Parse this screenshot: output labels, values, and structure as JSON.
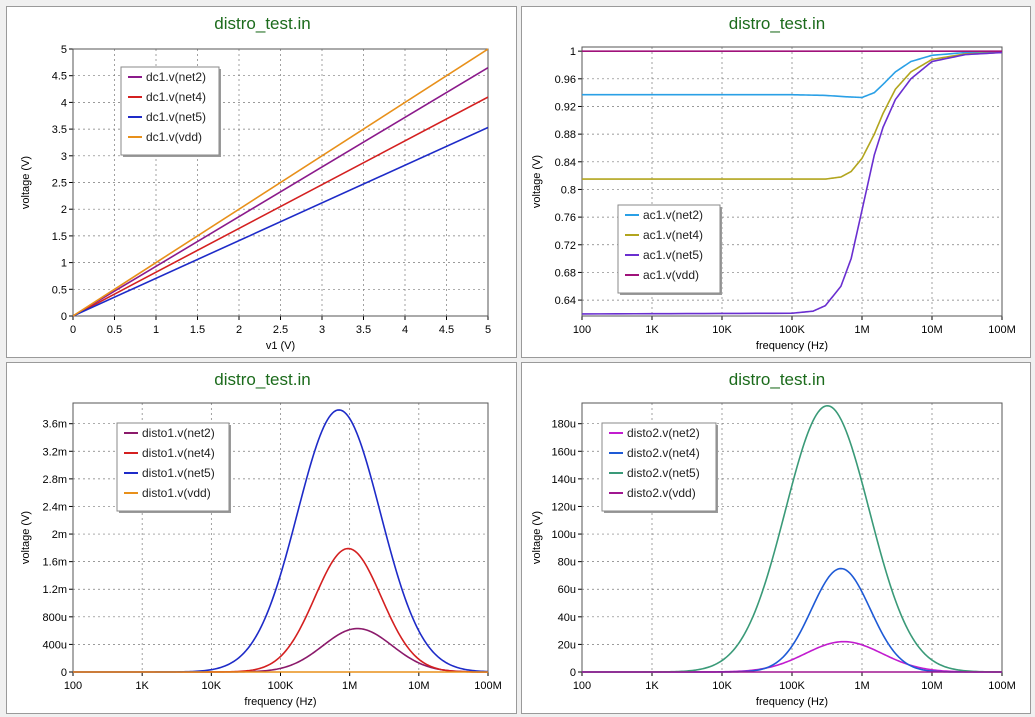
{
  "chart_data": [
    {
      "type": "line",
      "title": "distro_test.in",
      "xlabel": "v1 (V)",
      "ylabel": "voltage (V)",
      "xscale": "linear",
      "xlim": [
        0,
        5
      ],
      "ylim": [
        0,
        5
      ],
      "xticks": [
        0,
        0.5,
        1,
        1.5,
        2,
        2.5,
        3,
        3.5,
        4,
        4.5,
        5
      ],
      "xtick_labels": [
        "0",
        "0.5",
        "1",
        "1.5",
        "2",
        "2.5",
        "3",
        "3.5",
        "4",
        "4.5",
        "5"
      ],
      "yticks": [
        0,
        0.5,
        1,
        1.5,
        2,
        2.5,
        3,
        3.5,
        4,
        4.5,
        5
      ],
      "ytick_labels": [
        "0",
        "0.5",
        "1",
        "1.5",
        "2",
        "2.5",
        "3",
        "3.5",
        "4",
        "4.5",
        "5"
      ],
      "grid": true,
      "legend_position": "top-left",
      "series": [
        {
          "name": "dc1.v(net2)",
          "color": "#8b1a8b",
          "x": [
            0,
            5
          ],
          "y": [
            0,
            4.65
          ]
        },
        {
          "name": "dc1.v(net4)",
          "color": "#d42020",
          "x": [
            0,
            5
          ],
          "y": [
            0,
            4.1
          ]
        },
        {
          "name": "dc1.v(net5)",
          "color": "#1e2bc8",
          "x": [
            0,
            5
          ],
          "y": [
            0,
            3.53
          ]
        },
        {
          "name": "dc1.v(vdd)",
          "color": "#e8901a",
          "x": [
            0,
            5
          ],
          "y": [
            0,
            5.0
          ]
        }
      ]
    },
    {
      "type": "line",
      "title": "distro_test.in",
      "xlabel": "frequency (Hz)",
      "ylabel": "voltage (V)",
      "xscale": "log",
      "xlim": [
        100,
        100000000
      ],
      "ylim": [
        0.617,
        1.006
      ],
      "xticks": [
        100,
        1000,
        10000,
        100000,
        1000000,
        10000000,
        100000000
      ],
      "xtick_labels": [
        "100",
        "1K",
        "10K",
        "100K",
        "1M",
        "10M",
        "100M"
      ],
      "yticks": [
        0.64,
        0.68,
        0.72,
        0.76,
        0.8,
        0.84,
        0.88,
        0.92,
        0.96,
        1
      ],
      "ytick_labels": [
        "0.64",
        "0.68",
        "0.72",
        "0.76",
        "0.8",
        "0.84",
        "0.88",
        "0.92",
        "0.96",
        "1"
      ],
      "grid": true,
      "legend_position": "bottom-left",
      "series": [
        {
          "name": "ac1.v(net2)",
          "color": "#2aa0e6",
          "x": [
            100,
            100000,
            300000,
            600000,
            1000000,
            1500000,
            2000000,
            3000000,
            5000000,
            10000000,
            30000000,
            100000000
          ],
          "y": [
            0.937,
            0.937,
            0.936,
            0.934,
            0.933,
            0.94,
            0.952,
            0.97,
            0.985,
            0.994,
            0.998,
            0.998
          ]
        },
        {
          "name": "ac1.v(net4)",
          "color": "#b2a51e",
          "x": [
            100,
            100000,
            300000,
            500000,
            700000,
            1000000,
            1500000,
            2000000,
            3000000,
            5000000,
            10000000,
            30000000,
            100000000
          ],
          "y": [
            0.815,
            0.815,
            0.815,
            0.818,
            0.826,
            0.845,
            0.88,
            0.91,
            0.945,
            0.97,
            0.988,
            0.996,
            0.998
          ]
        },
        {
          "name": "ac1.v(net5)",
          "color": "#6a2fd0",
          "x": [
            100,
            100000,
            200000,
            300000,
            500000,
            700000,
            1000000,
            1500000,
            2000000,
            3000000,
            5000000,
            10000000,
            30000000,
            100000000
          ],
          "y": [
            0.62,
            0.621,
            0.624,
            0.632,
            0.66,
            0.7,
            0.77,
            0.85,
            0.89,
            0.93,
            0.96,
            0.985,
            0.995,
            0.998
          ]
        },
        {
          "name": "ac1.v(vdd)",
          "color": "#a0127a",
          "x": [
            100,
            100000000
          ],
          "y": [
            1.0,
            1.0
          ]
        }
      ]
    },
    {
      "type": "line",
      "title": "distro_test.in",
      "xlabel": "frequency (Hz)",
      "ylabel": "voltage (V)",
      "xscale": "log",
      "xlim": [
        100,
        100000000
      ],
      "ylim": [
        0,
        0.0039
      ],
      "xticks": [
        100,
        1000,
        10000,
        100000,
        1000000,
        10000000,
        100000000
      ],
      "xtick_labels": [
        "100",
        "1K",
        "10K",
        "100K",
        "1M",
        "10M",
        "100M"
      ],
      "yticks": [
        0,
        0.0004,
        0.0008,
        0.0012,
        0.0016,
        0.002,
        0.0024,
        0.0028,
        0.0032,
        0.0036
      ],
      "ytick_labels": [
        "0",
        "400u",
        "800u",
        "1.2m",
        "1.6m",
        "2m",
        "2.4m",
        "2.8m",
        "3.2m",
        "3.6m"
      ],
      "grid": true,
      "legend_position": "top-left",
      "series": [
        {
          "name": "disto1.v(net2)",
          "color": "#8b1a6b",
          "peak_x": 1300000,
          "peak_y": 0.00063,
          "width_decades": 0.5
        },
        {
          "name": "disto1.v(net4)",
          "color": "#d42020",
          "peak_x": 950000,
          "peak_y": 0.00179,
          "width_decades": 0.48
        },
        {
          "name": "disto1.v(net5)",
          "color": "#1e2bc8",
          "peak_x": 700000,
          "peak_y": 0.0038,
          "width_decades": 0.6
        },
        {
          "name": "disto1.v(vdd)",
          "color": "#e8901a",
          "peak_x": 1000000,
          "peak_y": 0,
          "width_decades": 0.5
        }
      ]
    },
    {
      "type": "line",
      "title": "distro_test.in",
      "xlabel": "frequency (Hz)",
      "ylabel": "voltage (V)",
      "xscale": "log",
      "xlim": [
        100,
        100000000
      ],
      "ylim": [
        0,
        195
      ],
      "xticks": [
        100,
        1000,
        10000,
        100000,
        1000000,
        10000000,
        100000000
      ],
      "xtick_labels": [
        "100",
        "1K",
        "10K",
        "100K",
        "1M",
        "10M",
        "100M"
      ],
      "yticks": [
        0,
        20,
        40,
        60,
        80,
        100,
        120,
        140,
        160,
        180
      ],
      "ytick_labels": [
        "0",
        "20u",
        "40u",
        "60u",
        "80u",
        "100u",
        "120u",
        "140u",
        "160u",
        "180u"
      ],
      "grid": true,
      "legend_position": "top-left",
      "series": [
        {
          "name": "disto2.v(net2)",
          "color": "#c21ccf",
          "peak_x": 550000,
          "peak_y": 22,
          "width_decades": 0.55
        },
        {
          "name": "disto2.v(net4)",
          "color": "#1e5ad6",
          "peak_x": 500000,
          "peak_y": 75,
          "width_decades": 0.42
        },
        {
          "name": "disto2.v(net5)",
          "color": "#3a9a78",
          "peak_x": 320000,
          "peak_y": 193,
          "width_decades": 0.6
        },
        {
          "name": "disto2.v(vdd)",
          "color": "#a01690",
          "peak_x": 1000000,
          "peak_y": 0,
          "width_decades": 0.5
        }
      ]
    }
  ]
}
